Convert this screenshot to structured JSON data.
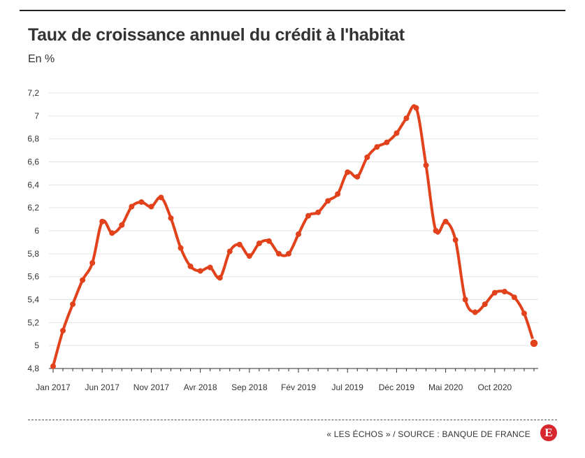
{
  "header": {
    "title": "Taux de croissance annuel du crédit à l'habitat",
    "subtitle": "En %"
  },
  "footer": {
    "source": "« LES ÉCHOS » / SOURCE : BANQUE DE FRANCE",
    "logo_letter": "E"
  },
  "colors": {
    "line": "#e2421b",
    "grid": "#e3e3e3",
    "axis": "#333333",
    "logo_bg": "#d7282f"
  },
  "chart_data": {
    "type": "line",
    "title": "Taux de croissance annuel du crédit à l'habitat",
    "ylabel": "En %",
    "xlabel": "",
    "ylim": [
      4.8,
      7.2
    ],
    "yticks": [
      4.8,
      5,
      5.2,
      5.4,
      5.6,
      5.8,
      6,
      6.2,
      6.4,
      6.6,
      6.8,
      7,
      7.2
    ],
    "ytick_labels": [
      "4,8",
      "5",
      "5,2",
      "5,4",
      "5,6",
      "5,8",
      "6",
      "6,2",
      "6,4",
      "6,6",
      "6,8",
      "7",
      "7,2"
    ],
    "xtick_labels": [
      "Jan 2017",
      "Jun 2017",
      "Nov 2017",
      "Avr 2018",
      "Sep 2018",
      "Fév 2019",
      "Jul 2019",
      "Déc 2019",
      "Mai 2020",
      "Oct 2020"
    ],
    "xtick_index": [
      0,
      5,
      10,
      15,
      20,
      25,
      30,
      35,
      40,
      45
    ],
    "grid": true,
    "legend": "none",
    "series": [
      {
        "values": [
          4.82,
          5.13,
          5.36,
          5.57,
          5.72,
          6.08,
          5.98,
          6.05,
          6.21,
          6.25,
          6.21,
          6.29,
          6.11,
          5.85,
          5.69,
          5.65,
          5.68,
          5.59,
          5.82,
          5.88,
          5.78,
          5.89,
          5.91,
          5.8,
          5.8,
          5.97,
          6.13,
          6.16,
          6.26,
          6.32,
          6.51,
          6.47,
          6.64,
          6.73,
          6.77,
          6.85,
          6.98,
          7.07,
          6.57,
          6.0,
          6.08,
          5.92,
          5.4,
          5.29,
          5.36,
          5.46,
          5.47,
          5.42,
          5.28,
          5.02
        ]
      }
    ]
  }
}
